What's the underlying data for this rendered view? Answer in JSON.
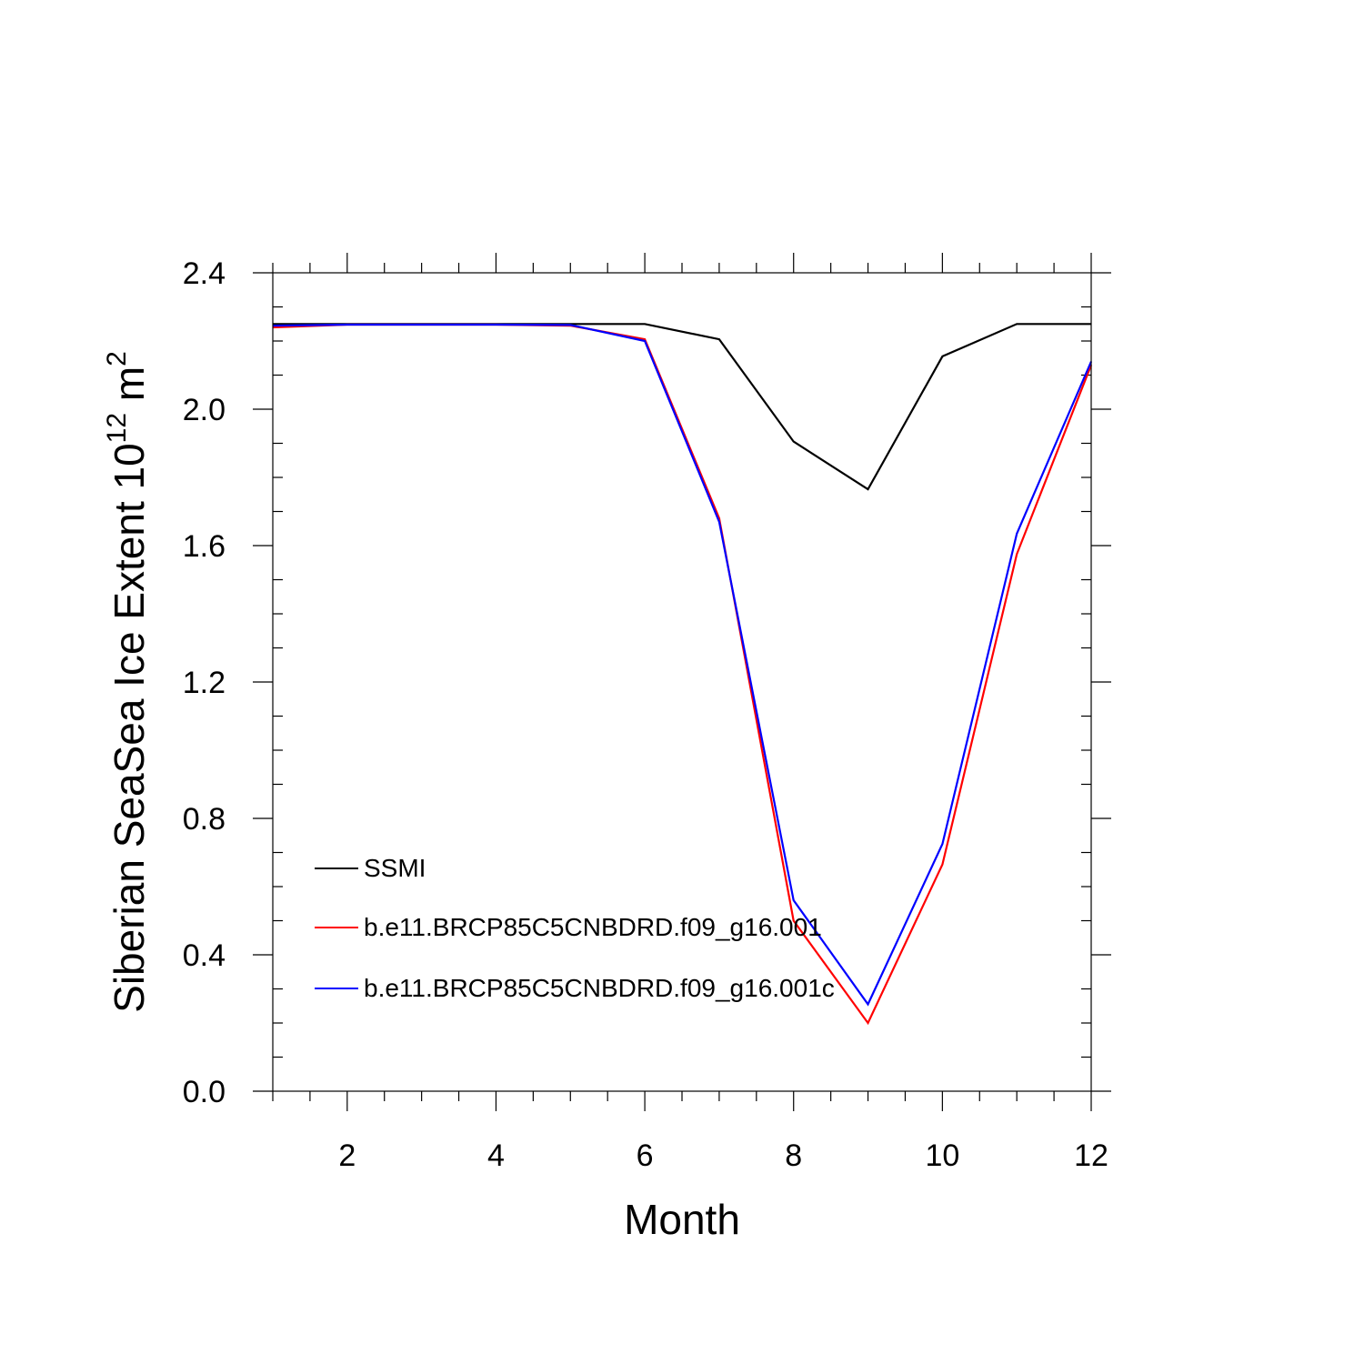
{
  "chart_data": {
    "type": "line",
    "title": "",
    "xlabel": "Month",
    "ylabel": {
      "text": "Siberian SeaSea Ice Extent 10",
      "superscript": "12",
      "unit": " m",
      "unit_superscript": "2"
    },
    "xlim": [
      1,
      12
    ],
    "ylim": [
      0.0,
      2.4
    ],
    "xticks": [
      2,
      4,
      6,
      8,
      10,
      12
    ],
    "xtick_labels": [
      "2",
      "4",
      "6",
      "8",
      "10",
      "12"
    ],
    "yticks": [
      0.0,
      0.4,
      0.8,
      1.2,
      1.6,
      2.0,
      2.4
    ],
    "ytick_labels": [
      "0.0",
      "0.4",
      "0.8",
      "1.2",
      "1.6",
      "2.0",
      "2.4"
    ],
    "grid": false,
    "legend_position": "lower-left",
    "x": [
      1,
      2,
      3,
      4,
      5,
      6,
      7,
      8,
      9,
      10,
      11,
      12
    ],
    "series": [
      {
        "name": "SSMI",
        "color": "#000000",
        "values": [
          2.25,
          2.25,
          2.25,
          2.25,
          2.25,
          2.25,
          2.205,
          1.905,
          1.765,
          2.155,
          2.25,
          2.25
        ]
      },
      {
        "name": "b.e11.BRCP85C5CNBDRD.f09_g16.001",
        "color": "#ff0000",
        "values": [
          2.24,
          2.248,
          2.248,
          2.248,
          2.245,
          2.205,
          1.68,
          0.5,
          0.2,
          0.665,
          1.575,
          2.13
        ]
      },
      {
        "name": "b.e11.BRCP85C5CNBDRD.f09_g16.001c",
        "color": "#0000ff",
        "values": [
          2.245,
          2.248,
          2.248,
          2.248,
          2.247,
          2.2,
          1.67,
          0.56,
          0.255,
          0.725,
          1.635,
          2.14
        ]
      }
    ]
  }
}
